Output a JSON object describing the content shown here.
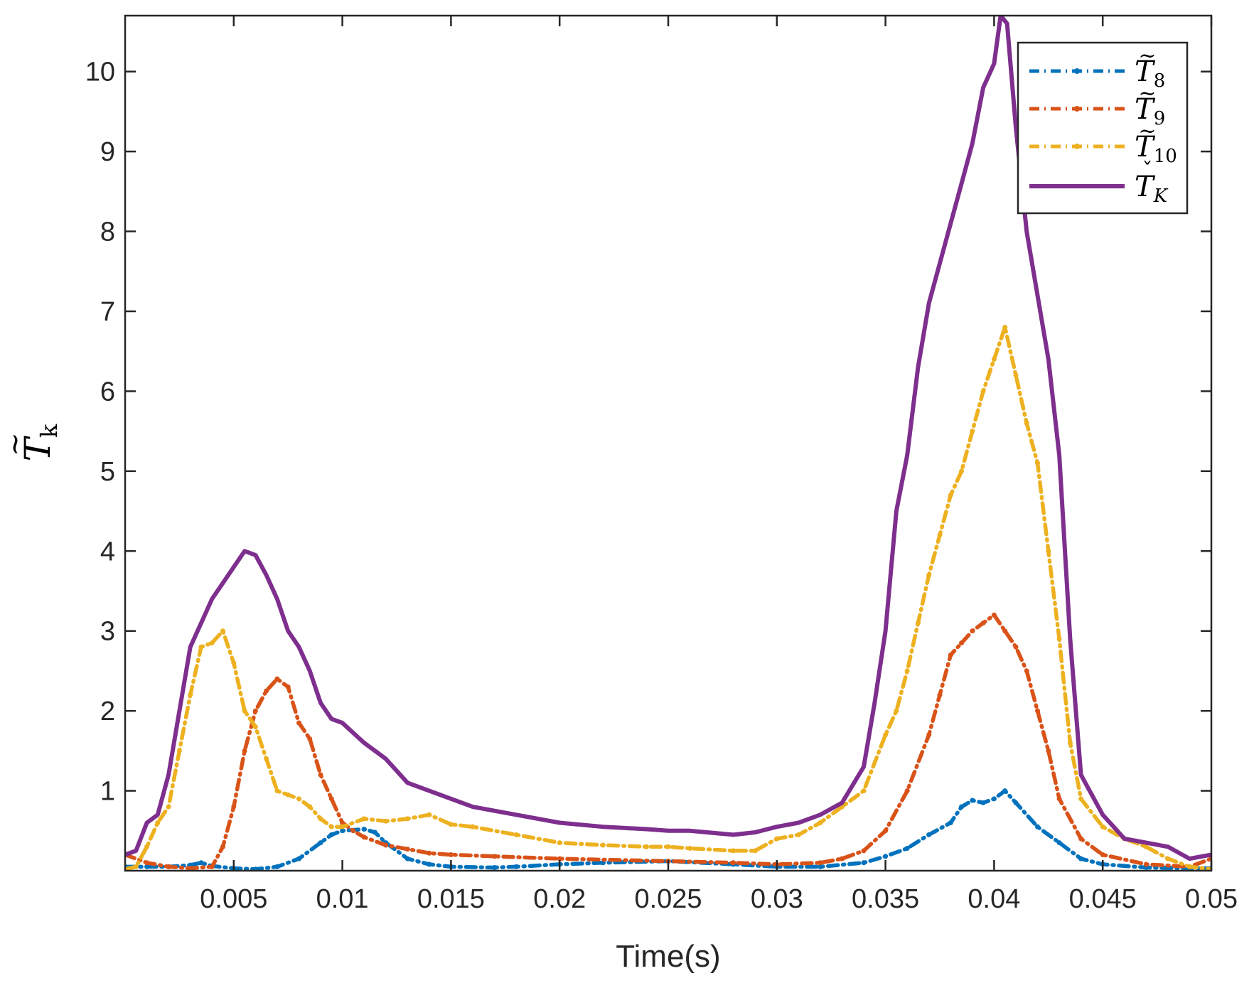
{
  "chart_data": {
    "type": "line",
    "title": "",
    "xlabel": "Time(s)",
    "ylabel": {
      "base": "T",
      "accent": "~",
      "sub": "k"
    },
    "xlim": [
      0,
      0.05
    ],
    "ylim": [
      0,
      10.7
    ],
    "xticks": [
      "0.005",
      "0.01",
      "0.015",
      "0.02",
      "0.025",
      "0.03",
      "0.035",
      "0.04",
      "0.045",
      "0.05"
    ],
    "xtick_values": [
      0.005,
      0.01,
      0.015,
      0.02,
      0.025,
      0.03,
      0.035,
      0.04,
      0.045,
      0.05
    ],
    "yticks": [
      "1",
      "2",
      "3",
      "4",
      "5",
      "6",
      "7",
      "8",
      "9",
      "10"
    ],
    "ytick_values": [
      1,
      2,
      3,
      4,
      5,
      6,
      7,
      8,
      9,
      10
    ],
    "grid": false,
    "legend_position": "top-right",
    "series": [
      {
        "name": "T̃8",
        "legend": {
          "base": "T",
          "accent": "~",
          "sub": "8"
        },
        "color": "#0072BD",
        "style": "dash-dot-marker",
        "x": [
          0,
          0.001,
          0.002,
          0.003,
          0.0035,
          0.004,
          0.005,
          0.006,
          0.007,
          0.008,
          0.009,
          0.0095,
          0.01,
          0.011,
          0.0115,
          0.012,
          0.013,
          0.014,
          0.015,
          0.017,
          0.018,
          0.02,
          0.022,
          0.025,
          0.028,
          0.03,
          0.032,
          0.034,
          0.035,
          0.036,
          0.037,
          0.038,
          0.0385,
          0.039,
          0.0395,
          0.04,
          0.0405,
          0.041,
          0.042,
          0.043,
          0.044,
          0.045,
          0.047,
          0.049,
          0.05
        ],
        "values": [
          0.05,
          0.05,
          0.05,
          0.07,
          0.1,
          0.06,
          0.03,
          0.02,
          0.05,
          0.15,
          0.35,
          0.45,
          0.5,
          0.52,
          0.48,
          0.35,
          0.15,
          0.08,
          0.05,
          0.04,
          0.05,
          0.08,
          0.1,
          0.12,
          0.08,
          0.05,
          0.05,
          0.1,
          0.18,
          0.28,
          0.45,
          0.6,
          0.8,
          0.88,
          0.85,
          0.9,
          1.0,
          0.85,
          0.55,
          0.35,
          0.15,
          0.08,
          0.04,
          0.03,
          0.03
        ]
      },
      {
        "name": "T̃9",
        "legend": {
          "base": "T",
          "accent": "~",
          "sub": "9"
        },
        "color": "#D95319",
        "style": "dash-dot-marker",
        "x": [
          0,
          0.001,
          0.002,
          0.003,
          0.004,
          0.0045,
          0.005,
          0.0055,
          0.006,
          0.0065,
          0.007,
          0.0075,
          0.008,
          0.0085,
          0.009,
          0.0095,
          0.01,
          0.0105,
          0.011,
          0.012,
          0.013,
          0.014,
          0.015,
          0.017,
          0.02,
          0.025,
          0.028,
          0.03,
          0.032,
          0.033,
          0.034,
          0.035,
          0.036,
          0.037,
          0.0375,
          0.038,
          0.0385,
          0.039,
          0.0395,
          0.04,
          0.0405,
          0.041,
          0.0415,
          0.042,
          0.0425,
          0.043,
          0.044,
          0.045,
          0.047,
          0.049,
          0.05
        ],
        "values": [
          0.2,
          0.1,
          0.05,
          0.03,
          0.05,
          0.3,
          0.8,
          1.5,
          2.0,
          2.25,
          2.4,
          2.3,
          1.85,
          1.65,
          1.2,
          0.9,
          0.6,
          0.5,
          0.42,
          0.32,
          0.27,
          0.22,
          0.2,
          0.18,
          0.15,
          0.12,
          0.1,
          0.08,
          0.1,
          0.15,
          0.25,
          0.5,
          1.0,
          1.7,
          2.2,
          2.7,
          2.85,
          3.0,
          3.1,
          3.2,
          3.0,
          2.8,
          2.5,
          2.0,
          1.5,
          0.9,
          0.4,
          0.2,
          0.08,
          0.05,
          0.15
        ]
      },
      {
        "name": "T̃10",
        "legend": {
          "base": "T",
          "accent": "~",
          "sub": "10"
        },
        "color": "#EDB120",
        "style": "dash-dot-marker",
        "x": [
          0,
          0.0005,
          0.001,
          0.0015,
          0.002,
          0.0025,
          0.003,
          0.0035,
          0.004,
          0.0045,
          0.005,
          0.0055,
          0.006,
          0.0065,
          0.007,
          0.0075,
          0.008,
          0.0085,
          0.009,
          0.0095,
          0.01,
          0.011,
          0.012,
          0.013,
          0.014,
          0.015,
          0.016,
          0.018,
          0.02,
          0.022,
          0.024,
          0.025,
          0.026,
          0.028,
          0.029,
          0.03,
          0.031,
          0.032,
          0.033,
          0.034,
          0.035,
          0.0355,
          0.036,
          0.0365,
          0.037,
          0.0375,
          0.038,
          0.0385,
          0.039,
          0.0395,
          0.04,
          0.0405,
          0.041,
          0.0415,
          0.042,
          0.0425,
          0.043,
          0.0435,
          0.044,
          0.045,
          0.046,
          0.047,
          0.048,
          0.049,
          0.05
        ],
        "values": [
          0.02,
          0.05,
          0.3,
          0.6,
          0.8,
          1.5,
          2.2,
          2.8,
          2.85,
          3.0,
          2.6,
          2.0,
          1.8,
          1.4,
          1.0,
          0.95,
          0.9,
          0.8,
          0.65,
          0.55,
          0.55,
          0.65,
          0.62,
          0.65,
          0.7,
          0.58,
          0.55,
          0.45,
          0.35,
          0.32,
          0.3,
          0.3,
          0.28,
          0.25,
          0.25,
          0.4,
          0.45,
          0.6,
          0.8,
          1.0,
          1.7,
          2.0,
          2.5,
          3.1,
          3.7,
          4.2,
          4.7,
          5.0,
          5.5,
          6.0,
          6.4,
          6.8,
          6.2,
          5.6,
          5.1,
          4.0,
          2.9,
          1.6,
          0.9,
          0.55,
          0.4,
          0.3,
          0.15,
          0.05,
          0.02
        ]
      },
      {
        "name": "Ť_K",
        "legend": {
          "base": "T",
          "accent": "ˇ",
          "sub": "K"
        },
        "color": "#7E2F8E",
        "style": "solid",
        "x": [
          0,
          0.0005,
          0.001,
          0.0015,
          0.002,
          0.0025,
          0.003,
          0.0035,
          0.004,
          0.0045,
          0.005,
          0.0055,
          0.006,
          0.0065,
          0.007,
          0.0075,
          0.008,
          0.0085,
          0.009,
          0.0095,
          0.01,
          0.011,
          0.012,
          0.013,
          0.014,
          0.015,
          0.016,
          0.018,
          0.02,
          0.022,
          0.024,
          0.025,
          0.026,
          0.028,
          0.029,
          0.03,
          0.031,
          0.032,
          0.033,
          0.034,
          0.0345,
          0.035,
          0.0355,
          0.036,
          0.0365,
          0.037,
          0.0375,
          0.038,
          0.0385,
          0.039,
          0.0395,
          0.04,
          0.0403,
          0.0406,
          0.041,
          0.0415,
          0.042,
          0.0425,
          0.043,
          0.0435,
          0.044,
          0.045,
          0.046,
          0.047,
          0.048,
          0.049,
          0.05
        ],
        "values": [
          0.2,
          0.25,
          0.6,
          0.7,
          1.2,
          2.0,
          2.8,
          3.1,
          3.4,
          3.6,
          3.8,
          4.0,
          3.95,
          3.7,
          3.4,
          3.0,
          2.8,
          2.5,
          2.1,
          1.9,
          1.85,
          1.6,
          1.4,
          1.1,
          1.0,
          0.9,
          0.8,
          0.7,
          0.6,
          0.55,
          0.52,
          0.5,
          0.5,
          0.45,
          0.48,
          0.55,
          0.6,
          0.7,
          0.85,
          1.3,
          2.1,
          3.0,
          4.5,
          5.2,
          6.3,
          7.1,
          7.6,
          8.1,
          8.6,
          9.1,
          9.8,
          10.1,
          10.7,
          10.6,
          9.3,
          8.0,
          7.2,
          6.4,
          5.2,
          2.9,
          1.2,
          0.7,
          0.4,
          0.35,
          0.3,
          0.15,
          0.2
        ]
      }
    ]
  }
}
